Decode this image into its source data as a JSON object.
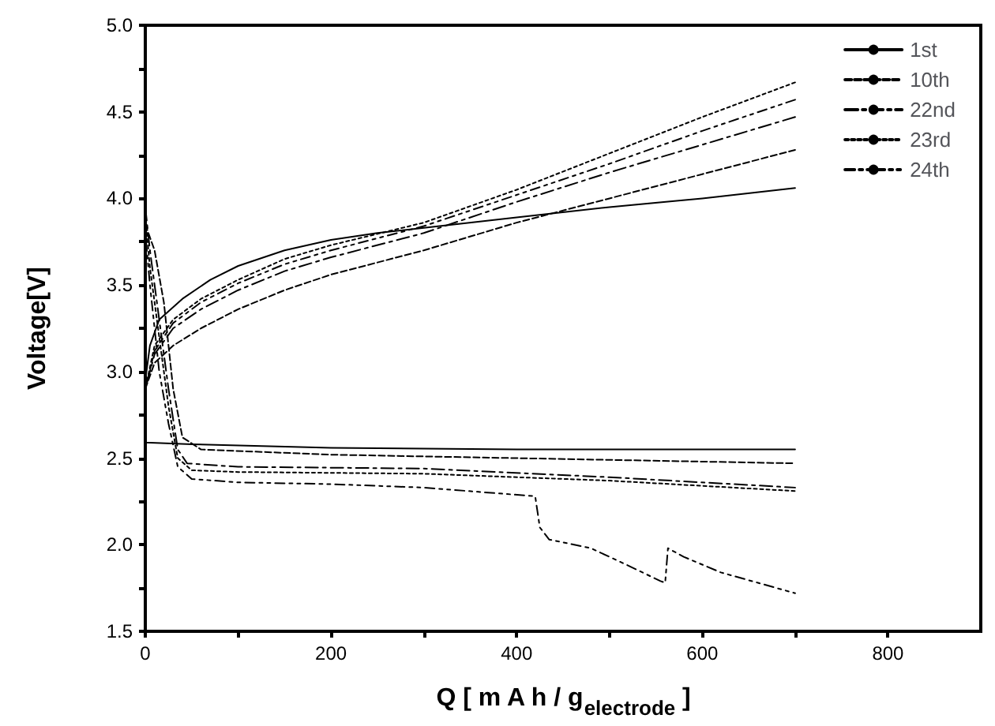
{
  "chart_data": {
    "type": "line",
    "xlabel": "Q [ m A h / g$_{electrode}$ ]",
    "ylabel": "Voltage[V]",
    "xlim": [
      0,
      900
    ],
    "ylim": [
      1.5,
      5.0
    ],
    "xticks": [
      0,
      {
        "value": 100,
        "label": null
      },
      200,
      {
        "value": 300,
        "label": null
      },
      400,
      {
        "value": 500,
        "label": null
      },
      600,
      {
        "value": 700,
        "label": null
      },
      800
    ],
    "yticks": [
      1.5,
      {
        "value": 1.75,
        "label": null
      },
      {
        "value": 2,
        "label": "2.0"
      },
      {
        "value": 2.25,
        "label": null
      },
      2.5,
      {
        "value": 2.75,
        "label": null
      },
      {
        "value": 3,
        "label": "3.0"
      },
      {
        "value": 3.25,
        "label": null
      },
      3.5,
      {
        "value": 3.75,
        "label": null
      },
      {
        "value": 4,
        "label": "4.0"
      },
      {
        "value": 4.25,
        "label": null
      },
      4.5,
      {
        "value": 4.75,
        "label": null
      },
      {
        "value": 5,
        "label": "5.0"
      }
    ],
    "grid": false,
    "legend": "top right",
    "marker": "none",
    "series": [
      {
        "name": "1st",
        "color": "#000000",
        "line_style": "solid",
        "x": [
          700,
          600,
          500,
          400,
          300,
          250,
          200,
          150,
          100,
          70,
          40,
          15,
          5,
          0,
          0,
          50,
          200,
          400,
          700
        ],
        "values": [
          4.06,
          4.0,
          3.95,
          3.89,
          3.83,
          3.8,
          3.76,
          3.7,
          3.61,
          3.53,
          3.42,
          3.3,
          3.15,
          2.95,
          2.59,
          2.58,
          2.56,
          2.55,
          2.55
        ]
      },
      {
        "name": "10th",
        "color": "#000000",
        "line_style": "dashed",
        "x": [
          700,
          600,
          500,
          400,
          300,
          200,
          150,
          100,
          60,
          30,
          10,
          0,
          0,
          10,
          20,
          30,
          40,
          60,
          200,
          400,
          600,
          700
        ],
        "values": [
          4.28,
          4.14,
          4.0,
          3.86,
          3.7,
          3.56,
          3.47,
          3.36,
          3.25,
          3.15,
          3.05,
          2.9,
          3.85,
          3.7,
          3.4,
          2.9,
          2.62,
          2.55,
          2.52,
          2.5,
          2.48,
          2.47
        ]
      },
      {
        "name": "22nd",
        "color": "#000000",
        "line_style": "dashdot",
        "x": [
          700,
          600,
          500,
          400,
          300,
          200,
          150,
          100,
          60,
          30,
          10,
          0,
          0,
          5,
          15,
          25,
          35,
          45,
          100,
          300,
          500,
          700
        ],
        "values": [
          4.47,
          4.31,
          4.15,
          3.98,
          3.8,
          3.66,
          3.58,
          3.47,
          3.36,
          3.25,
          3.1,
          2.9,
          3.95,
          3.7,
          3.3,
          2.9,
          2.55,
          2.47,
          2.45,
          2.44,
          2.39,
          2.33
        ]
      },
      {
        "name": "23rd",
        "color": "#000000",
        "line_style": "dotted",
        "x": [
          700,
          600,
          500,
          400,
          300,
          200,
          150,
          100,
          60,
          30,
          10,
          0,
          0,
          5,
          15,
          25,
          35,
          50,
          100,
          300,
          500,
          700
        ],
        "values": [
          4.67,
          4.47,
          4.26,
          4.05,
          3.86,
          3.73,
          3.65,
          3.53,
          3.42,
          3.3,
          3.15,
          2.9,
          3.9,
          3.6,
          3.2,
          2.8,
          2.5,
          2.43,
          2.42,
          2.41,
          2.37,
          2.31
        ]
      },
      {
        "name": "24th",
        "color": "#000000",
        "line_style": "dashdotdot",
        "x": [
          700,
          600,
          500,
          400,
          300,
          200,
          150,
          100,
          60,
          30,
          10,
          0,
          0,
          5,
          15,
          25,
          35,
          50,
          100,
          200,
          300,
          420,
          425,
          435,
          480,
          520,
          555,
          560,
          563,
          580,
          620,
          660,
          700
        ],
        "values": [
          4.57,
          4.39,
          4.2,
          4.02,
          3.84,
          3.7,
          3.62,
          3.51,
          3.4,
          3.28,
          3.12,
          2.9,
          3.8,
          3.5,
          3.0,
          2.7,
          2.45,
          2.38,
          2.36,
          2.35,
          2.33,
          2.28,
          2.1,
          2.03,
          1.98,
          1.88,
          1.79,
          1.78,
          1.98,
          1.93,
          1.84,
          1.78,
          1.72
        ]
      }
    ]
  }
}
